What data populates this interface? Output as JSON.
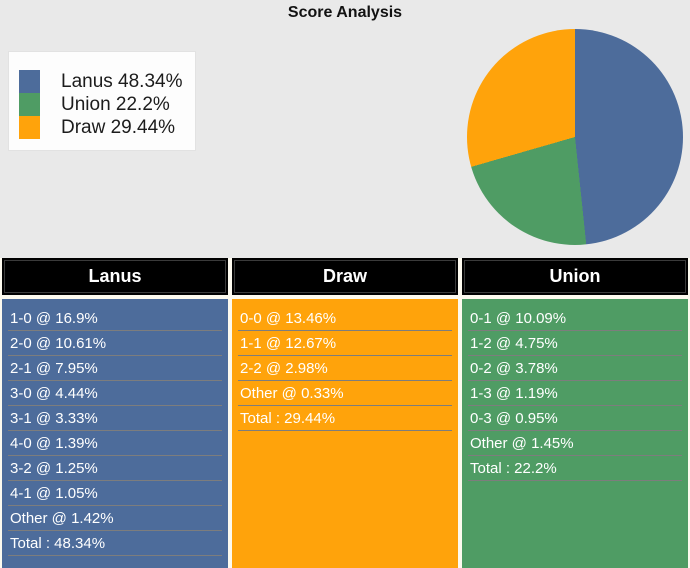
{
  "title": "Score Analysis",
  "colors": {
    "page_bg": "#e9e9e9",
    "lanus": "#4d6c9b",
    "union": "#4f9c64",
    "draw": "#ffa30b",
    "header_bg": "#000000",
    "header_text": "#ffffff",
    "row_text": "#ffffff",
    "separator": "#7d7d7d",
    "legend_bg": "#fdfdfd",
    "table_gap_bg": "#fdfaef"
  },
  "chart_data": {
    "type": "pie",
    "title": "Score Analysis",
    "series": [
      {
        "name": "Lanus",
        "value": 48.34,
        "color": "#4d6c9b"
      },
      {
        "name": "Union",
        "value": 22.2,
        "color": "#4f9c64"
      },
      {
        "name": "Draw",
        "value": 29.44,
        "color": "#ffa30b"
      }
    ],
    "start_angle": "12-oclock",
    "direction": "clockwise",
    "draw_order": [
      "Lanus",
      "Union",
      "Draw"
    ],
    "legend_position": "upper-left",
    "legend_entries": [
      "Lanus 48.34%",
      "Union 22.2%",
      "Draw 29.44%"
    ]
  },
  "legend": {
    "items": [
      {
        "label": "Lanus 48.34%",
        "color": "#4d6c9b"
      },
      {
        "label": "Union 22.2%",
        "color": "#4f9c64"
      },
      {
        "label": "Draw 29.44%",
        "color": "#ffa30b"
      }
    ]
  },
  "tables": [
    {
      "header": "Lanus",
      "bg": "#4d6c9b",
      "rows": [
        "1-0 @ 16.9%",
        "2-0 @ 10.61%",
        "2-1 @ 7.95%",
        "3-0 @ 4.44%",
        "3-1 @ 3.33%",
        "4-0 @ 1.39%",
        "3-2 @ 1.25%",
        "4-1 @ 1.05%",
        "Other @ 1.42%",
        "Total : 48.34%"
      ]
    },
    {
      "header": "Draw",
      "bg": "#ffa30b",
      "rows": [
        "0-0 @ 13.46%",
        "1-1 @ 12.67%",
        "2-2 @ 2.98%",
        "Other @ 0.33%",
        "Total : 29.44%"
      ]
    },
    {
      "header": "Union",
      "bg": "#4f9c64",
      "rows": [
        "0-1 @ 10.09%",
        "1-2 @ 4.75%",
        "0-2 @ 3.78%",
        "1-3 @ 1.19%",
        "0-3 @ 0.95%",
        "Other @ 1.45%",
        "Total : 22.2%"
      ]
    }
  ]
}
